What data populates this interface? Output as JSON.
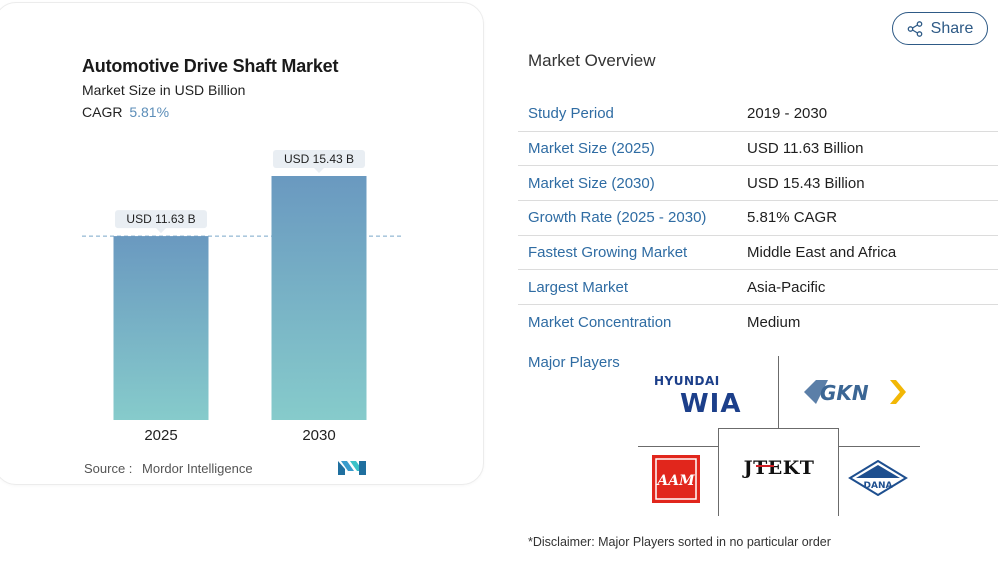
{
  "chart_data": {
    "type": "bar",
    "title": "Automotive Drive Shaft Market",
    "subtitle": "Market Size in USD Billion",
    "cagr_label": "CAGR",
    "cagr_value": "5.81%",
    "categories": [
      "2025",
      "2030"
    ],
    "values": [
      11.63,
      15.43
    ],
    "data_labels": [
      "USD 11.63 B",
      "USD 15.43 B"
    ],
    "reference_line": 11.63,
    "bar_color_top": "#6a99c0",
    "bar_color_bottom": "#86cbcb",
    "grid": false
  },
  "source": {
    "label": "Source :",
    "value": "Mordor Intelligence"
  },
  "share": {
    "label": "Share",
    "icon": "share-icon",
    "color": "#2e5a86"
  },
  "overview": {
    "title": "Market Overview",
    "rows": [
      {
        "label": "Study Period",
        "value": "2019 - 2030"
      },
      {
        "label": "Market Size (2025)",
        "value": "USD 11.63 Billion"
      },
      {
        "label": "Market Size (2030)",
        "value": "USD 15.43 Billion"
      },
      {
        "label": "Growth Rate (2025 - 2030)",
        "value": "5.81% CAGR"
      },
      {
        "label": "Fastest Growing Market",
        "value": "Middle East and Africa"
      },
      {
        "label": "Largest Market",
        "value": "Asia-Pacific"
      },
      {
        "label": "Market Concentration",
        "value": "Medium"
      }
    ],
    "accent": "#2f6ca3"
  },
  "players": {
    "label": "Major Players",
    "logos": [
      {
        "name": "Hyundai WIA",
        "line1": "HYUNDAI",
        "line2": "WIA"
      },
      {
        "name": "GKN",
        "text": "GKN"
      },
      {
        "name": "AAM",
        "text": "AAM"
      },
      {
        "name": "JTEKT",
        "text": "JTEKT"
      },
      {
        "name": "DANA",
        "text": "DANA"
      }
    ]
  },
  "disclaimer": "*Disclaimer: Major Players sorted in no particular order"
}
